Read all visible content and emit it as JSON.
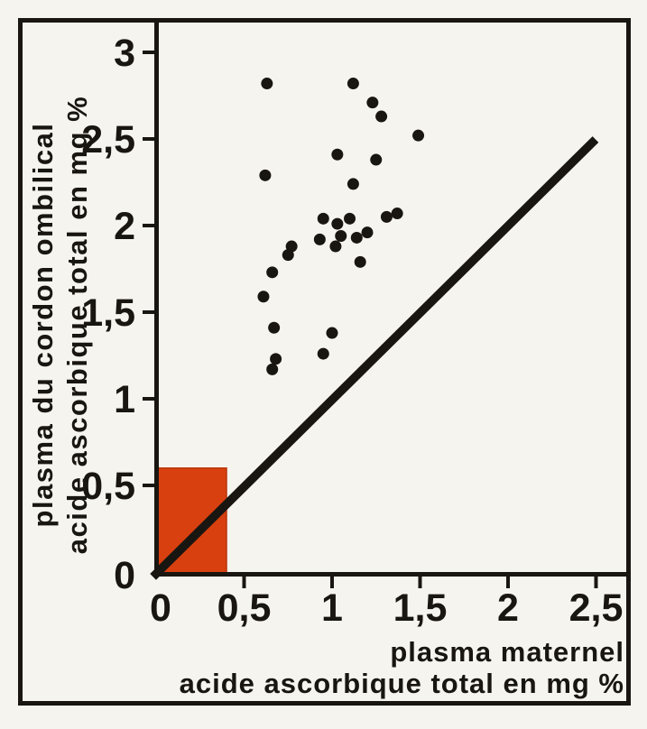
{
  "figure": {
    "kind": "scanned scatter plot figure",
    "paper_color": "#f6f4ee",
    "ink_color": "#191611",
    "frame_color": "#191611"
  },
  "chart_data": {
    "type": "scatter",
    "title": "",
    "xlabel_lines": [
      "plasma maternel",
      "acide ascorbique total en mg %"
    ],
    "ylabel_lines": [
      "plasma du cordon ombilical",
      "acide ascorbique total en mg %"
    ],
    "units": "mg %",
    "xlim": [
      0,
      2.7
    ],
    "ylim": [
      0,
      3.18
    ],
    "grid": false,
    "legend": null,
    "x_ticks": {
      "values": [
        0,
        0.5,
        1,
        1.5,
        2,
        2.5
      ],
      "labels": [
        "0",
        "0,5",
        "1",
        "1,5",
        "2",
        "2,5"
      ]
    },
    "y_ticks": {
      "values": [
        0,
        0.5,
        1,
        1.5,
        2,
        2.5,
        3
      ],
      "labels": [
        "0",
        "0,5",
        "1",
        "1,5",
        "2",
        "2,5",
        "3"
      ]
    },
    "point_color": "#191611",
    "points": [
      [
        0.63,
        2.82
      ],
      [
        1.12,
        2.82
      ],
      [
        1.23,
        2.71
      ],
      [
        1.28,
        2.63
      ],
      [
        1.49,
        2.52
      ],
      [
        1.03,
        2.41
      ],
      [
        1.25,
        2.38
      ],
      [
        0.62,
        2.29
      ],
      [
        1.12,
        2.24
      ],
      [
        1.37,
        2.07
      ],
      [
        1.31,
        2.05
      ],
      [
        0.95,
        2.04
      ],
      [
        1.1,
        2.04
      ],
      [
        1.03,
        2.01
      ],
      [
        1.2,
        1.96
      ],
      [
        1.05,
        1.94
      ],
      [
        1.14,
        1.93
      ],
      [
        0.93,
        1.92
      ],
      [
        1.02,
        1.88
      ],
      [
        0.77,
        1.88
      ],
      [
        0.75,
        1.83
      ],
      [
        1.16,
        1.79
      ],
      [
        0.66,
        1.73
      ],
      [
        0.61,
        1.59
      ],
      [
        0.67,
        1.41
      ],
      [
        1.0,
        1.38
      ],
      [
        0.95,
        1.26
      ],
      [
        0.68,
        1.23
      ],
      [
        0.66,
        1.17
      ]
    ],
    "identity_line": {
      "x1": 0,
      "y1": 0,
      "x2": 2.48,
      "y2": 2.48,
      "color": "#191611"
    },
    "normal_range_box": {
      "x0": 0,
      "y0": 0,
      "x1": 0.4,
      "y1": 0.6,
      "color": "#d8400f",
      "edge_color": "#b93409"
    }
  }
}
